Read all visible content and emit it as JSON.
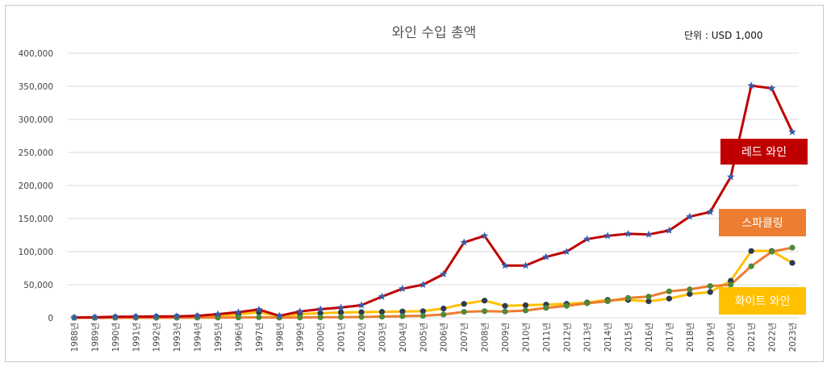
{
  "chart_data": {
    "type": "line",
    "title": "와인 수입 총액",
    "unit_label": "단위 : USD 1,000",
    "ylim": [
      0,
      400000
    ],
    "yticks": [
      0,
      50000,
      100000,
      150000,
      200000,
      250000,
      300000,
      350000,
      400000
    ],
    "ytick_labels": [
      "0",
      "50,000",
      "100,000",
      "150,000",
      "200,000",
      "250,000",
      "300,000",
      "350,000",
      "400,000"
    ],
    "grid": true,
    "categories": [
      "1988년",
      "1989년",
      "1990년",
      "1991년",
      "1992년",
      "1993년",
      "1994년",
      "1995년",
      "1996년",
      "1997년",
      "1998년",
      "1999년",
      "2000년",
      "2001년",
      "2002년",
      "2003년",
      "2004년",
      "2005년",
      "2006년",
      "2007년",
      "2008년",
      "2009년",
      "2010년",
      "2011년",
      "2012년",
      "2013년",
      "2014년",
      "2015년",
      "2016년",
      "2017년",
      "2018년",
      "2019년",
      "2020년",
      "2021년",
      "2022년",
      "2023년"
    ],
    "series": [
      {
        "name": "레드 와인",
        "color": "#c00000",
        "marker_color": "#3a5aa8",
        "marker": "star",
        "values": [
          500,
          800,
          1500,
          1800,
          2000,
          2200,
          3000,
          5500,
          8500,
          12500,
          3000,
          9500,
          13000,
          15500,
          19000,
          32000,
          44000,
          50000,
          66000,
          114000,
          124000,
          79000,
          79000,
          92000,
          100000,
          119000,
          124000,
          127000,
          126000,
          132000,
          153000,
          160000,
          213000,
          351000,
          347000,
          281000
        ]
      },
      {
        "name": "스파클링",
        "color": "#ed7d31",
        "marker_color": "#4d8a3a",
        "marker": "circle",
        "values": [
          0,
          0,
          0,
          0,
          0,
          100,
          200,
          300,
          500,
          800,
          200,
          500,
          700,
          900,
          1200,
          1800,
          2500,
          3000,
          5000,
          9000,
          10000,
          9500,
          11000,
          15000,
          18000,
          22000,
          25000,
          30000,
          32000,
          40000,
          43000,
          48000,
          50000,
          78000,
          100000,
          106000
        ]
      },
      {
        "name": "화이트 와인",
        "color": "#ffc000",
        "marker_color": "#2b3a55",
        "marker": "circle",
        "values": [
          300,
          500,
          1200,
          1500,
          1800,
          2000,
          2500,
          3500,
          5000,
          8500,
          2000,
          5500,
          7000,
          8000,
          8500,
          9000,
          9500,
          10000,
          14000,
          21000,
          26000,
          18000,
          19000,
          20000,
          21000,
          23000,
          27000,
          27000,
          25000,
          29000,
          36000,
          39000,
          56000,
          101000,
          101000,
          83000
        ]
      }
    ],
    "legend": [
      {
        "label": "레드 와인",
        "color": "#c00000"
      },
      {
        "label": "스파클링",
        "color": "#ed7d31"
      },
      {
        "label": "화이트 와인",
        "color": "#ffc000"
      }
    ]
  }
}
